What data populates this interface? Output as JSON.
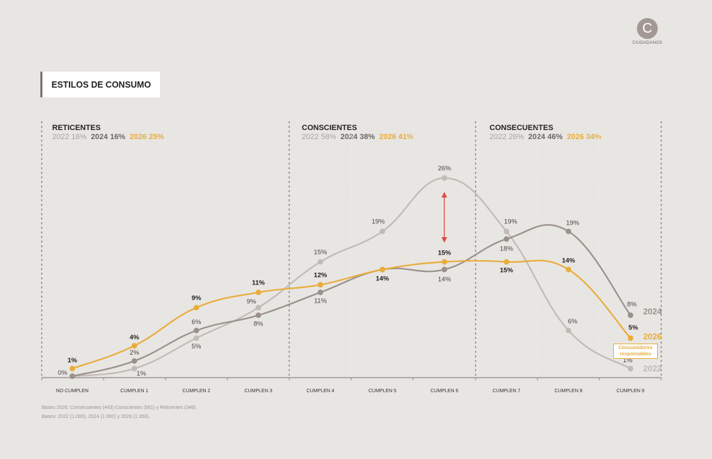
{
  "logo": {
    "letter": "C",
    "name": "CIUDADANOS"
  },
  "title": "ESTILOS DE CONSUMO",
  "groups": [
    {
      "name": "RETICENTES",
      "y2022": "2022 16%",
      "y2024": "2024 16%",
      "y2026": "2026 25%"
    },
    {
      "name": "CONSCIENTES",
      "y2022": "2022 58%",
      "y2024": "2024 38%",
      "y2026": "2026 41%"
    },
    {
      "name": "CONSECUENTES",
      "y2022": "2022 26%",
      "y2024": "2024 46%",
      "y2026": "2026 34%"
    }
  ],
  "annotation": "Consumidores responsables",
  "notes": [
    "Bases 2026: Consecuentes (443) Conscientes (561) y Reticentes (346).",
    "Bases: 2022 (1.000), 2024 (1.000) y 2026 (1.350)."
  ],
  "chart_data": {
    "type": "line",
    "title": "ESTILOS DE CONSUMO",
    "categories": [
      "NO CUMPLEN",
      "CUMPLEN 1",
      "CUMPLEN 2",
      "CUMPLEN 3",
      "CUMPLEN 4",
      "CUMPLEN 5",
      "CUMPLEN 6",
      "CUMPLEN 7",
      "CUMPLEN 8",
      "CUMPLEN 9"
    ],
    "ylim": [
      0,
      26
    ],
    "unit": "%",
    "series": [
      {
        "name": "2022",
        "color": "#c2bab6",
        "values": [
          0,
          1,
          5,
          9,
          15,
          19,
          26,
          19,
          6,
          1
        ]
      },
      {
        "name": "2024",
        "color": "#9a918c",
        "values": [
          0,
          2,
          6,
          8,
          11,
          14,
          14,
          18,
          19,
          8
        ]
      },
      {
        "name": "2026",
        "color": "#e8ad3c",
        "values": [
          1,
          4,
          9,
          11,
          12,
          14,
          15,
          15,
          14,
          5
        ]
      }
    ],
    "legend_placement": "right-end-of-lines"
  }
}
